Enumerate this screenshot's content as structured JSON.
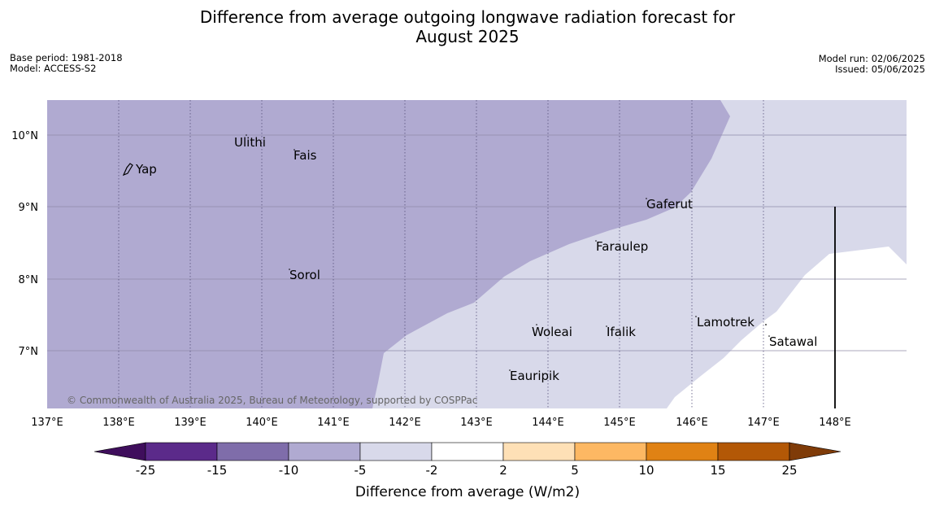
{
  "title_line1": "Difference from average outgoing longwave radiation forecast for",
  "title_line2": "August 2025",
  "meta_left": [
    "Base period: 1981-2018",
    "Model: ACCESS-S2"
  ],
  "meta_right": [
    "Model run: 02/06/2025",
    "Issued: 05/06/2025"
  ],
  "copyright": "© Commonwealth of Australia 2025, Bureau of Meteorology, supported by COSPPac",
  "axes": {
    "x_ticks": [
      "137°E",
      "138°E",
      "139°E",
      "140°E",
      "141°E",
      "142°E",
      "143°E",
      "144°E",
      "145°E",
      "146°E",
      "147°E",
      "148°E"
    ],
    "y_ticks": [
      "10°N",
      "9°N",
      "8°N",
      "7°N"
    ]
  },
  "places": [
    {
      "name": "Yap"
    },
    {
      "name": "Ulithi"
    },
    {
      "name": "Fais"
    },
    {
      "name": "Gaferut"
    },
    {
      "name": "Faraulep"
    },
    {
      "name": "Sorol"
    },
    {
      "name": "Woleai"
    },
    {
      "name": "Ifalik"
    },
    {
      "name": "Lamotrek"
    },
    {
      "name": "Satawal"
    },
    {
      "name": "Eauripik"
    }
  ],
  "colorbar": {
    "title": "Difference from average (W/m2)",
    "ticks": [
      "-25",
      "-15",
      "-10",
      "-5",
      "-2",
      "2",
      "5",
      "10",
      "15",
      "25"
    ],
    "colors": [
      "#3f0e5c",
      "#5b2a8a",
      "#7f6daa",
      "#b0aad1",
      "#d8d9ea",
      "#ffffff",
      "#fee0b6",
      "#fdb863",
      "#e08214",
      "#b35806",
      "#7f3b08"
    ]
  },
  "legend_colors": {
    "dark_purple": "#b0aad1",
    "light_purple": "#d8d9ea",
    "white": "#ffffff"
  }
}
